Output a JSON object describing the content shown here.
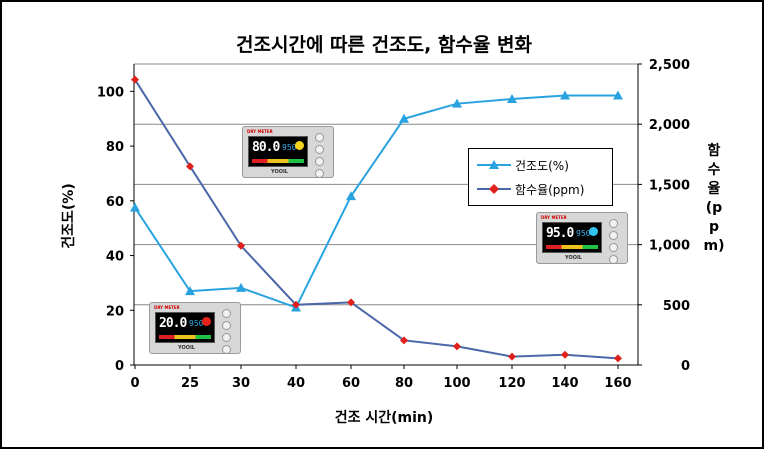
{
  "chart_data": {
    "type": "line",
    "title": "건조시간에 따른 건조도, 함수율 변화",
    "xlabel": "건조 시간(min)",
    "ylabel_left": "건조도(%)",
    "ylabel_right": "함수율(ppm)",
    "categories": [
      "0",
      "25",
      "30",
      "40",
      "60",
      "80",
      "100",
      "120",
      "140",
      "160"
    ],
    "ylim_left": [
      0,
      110
    ],
    "ylim_right": [
      0,
      2500
    ],
    "yticks_left": [
      "0",
      "20",
      "40",
      "60",
      "80",
      "100"
    ],
    "yticks_right": [
      "0",
      "500",
      "1,000",
      "1,500",
      "2,000",
      "2,500"
    ],
    "grid": true,
    "legend_position": "right-middle",
    "series": [
      {
        "name": "건조도(%)",
        "axis": "left",
        "marker": "triangle",
        "color": "#29a3e0",
        "values": [
          57.5,
          27,
          28.2,
          21,
          61.7,
          90,
          95.5,
          97.2,
          98.5,
          98.5
        ]
      },
      {
        "name": "함수율(ppm)",
        "axis": "right",
        "marker": "diamond",
        "color": "#4a67a8",
        "marker_color": "#e0201b",
        "values": [
          2370,
          1650,
          990,
          500,
          520,
          205,
          155,
          70,
          85,
          55
        ]
      }
    ]
  },
  "devices": [
    {
      "brand": "DRY METER",
      "display": "80.0",
      "sub": "950",
      "dot_color": "#f3d21c",
      "maker": "YOOIL"
    },
    {
      "brand": "DRY METER",
      "display": "95.0",
      "sub": "950",
      "dot_color": "#31c6f2",
      "maker": "YOOIL"
    },
    {
      "brand": "DRY METER",
      "display": "20.0",
      "sub": "950",
      "dot_color": "#e8231c",
      "maker": "YOOIL"
    }
  ]
}
